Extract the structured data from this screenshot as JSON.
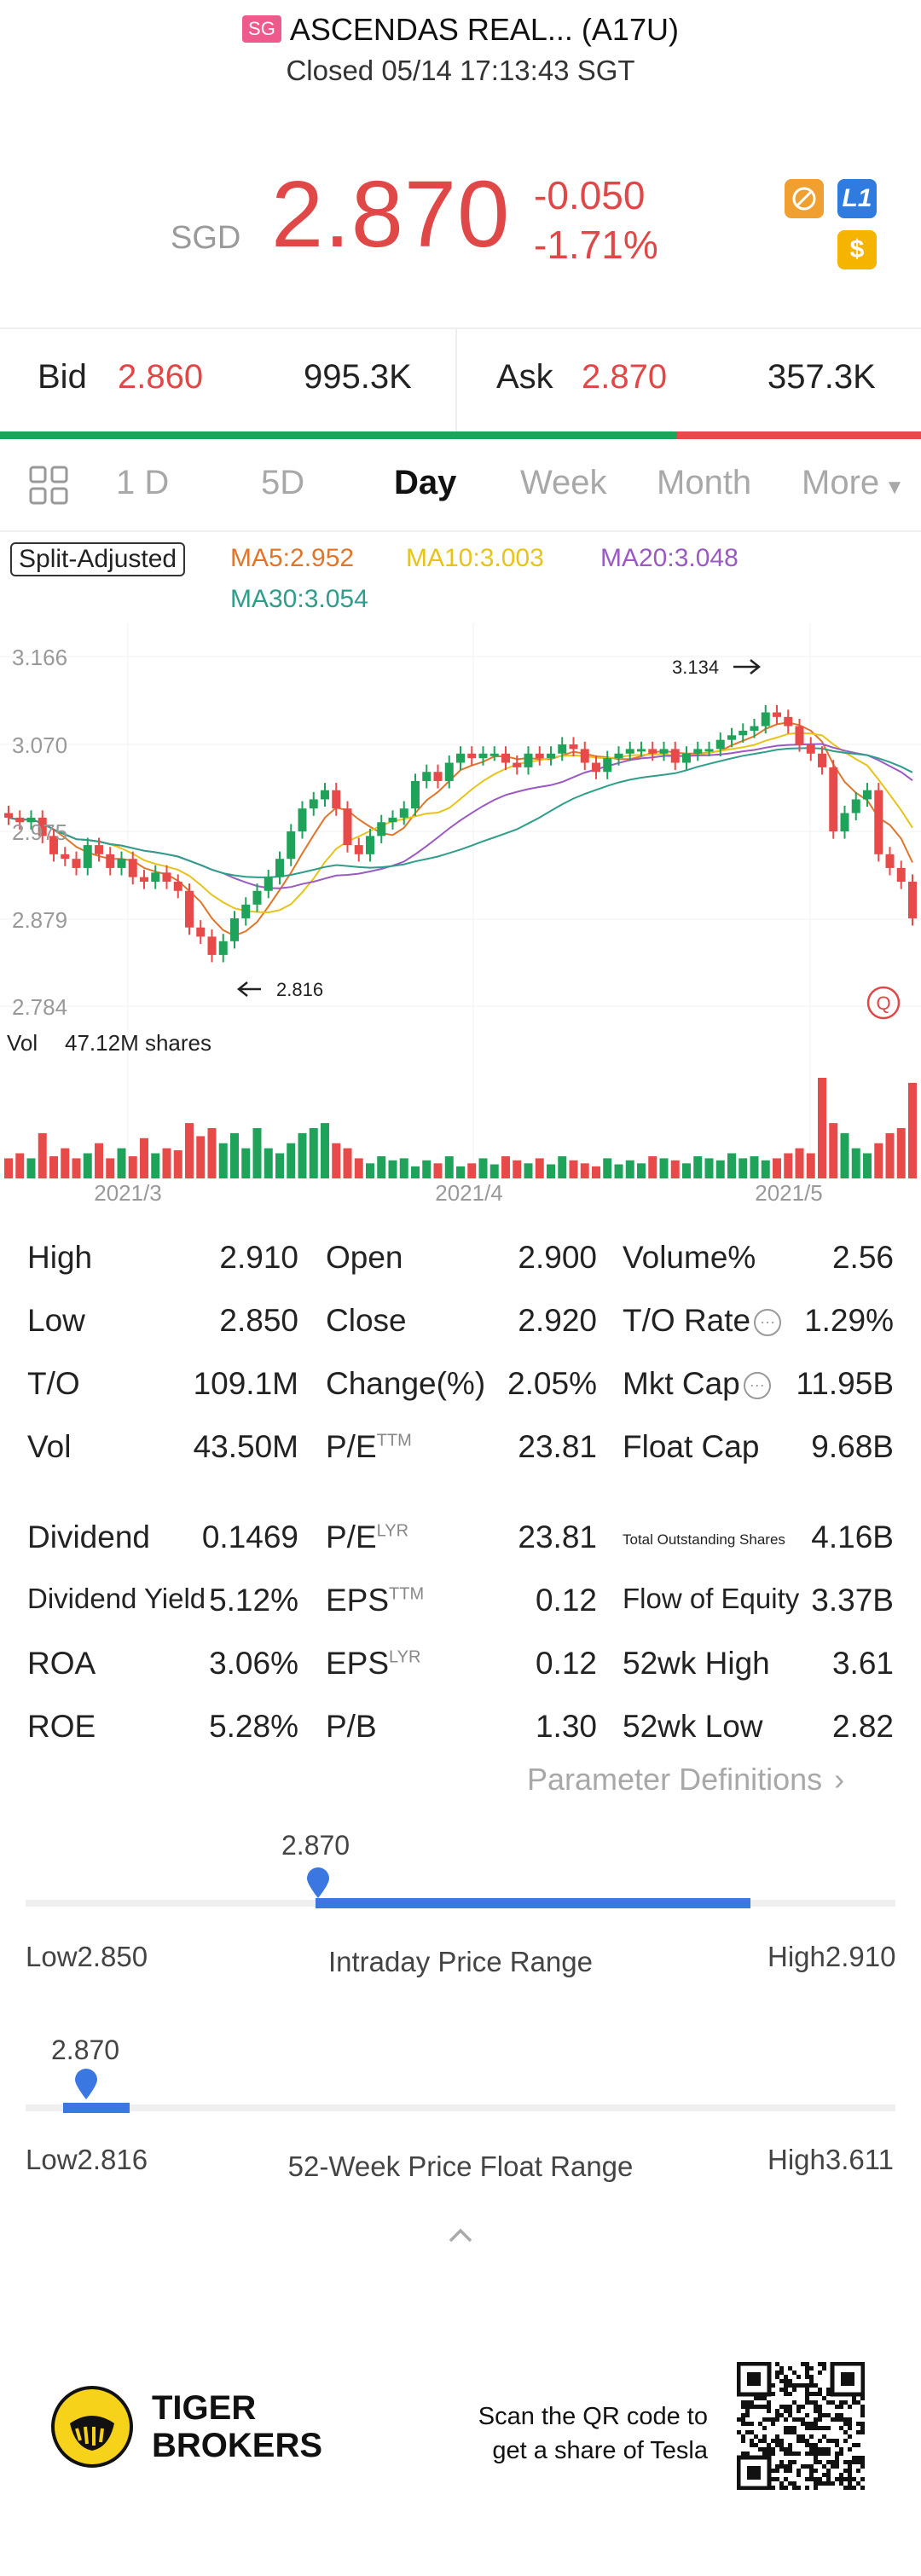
{
  "header": {
    "market_tag": "SG",
    "title": "ASCENDAS REAL... (A17U)",
    "status": "Closed 05/14 17:13:43 SGT"
  },
  "quote": {
    "currency": "SGD",
    "price": "2.870",
    "change": "-0.050",
    "change_pct": "-1.71%",
    "badges": [
      "shortable-icon",
      "level1-icon",
      "dollar-icon"
    ],
    "badge_l1": "L1",
    "badge_dollar": "$"
  },
  "bidask": {
    "bid_label": "Bid",
    "bid_price": "2.860",
    "bid_size": "995.3K",
    "ask_label": "Ask",
    "ask_price": "2.870",
    "ask_size": "357.3K",
    "bid_share": 0.735
  },
  "tabs": [
    "1 D",
    "5D",
    "Day",
    "Week",
    "Month",
    "More"
  ],
  "active_tab": "Day",
  "ma": {
    "split": "Split-Adjusted",
    "ma5": "MA5:2.952",
    "ma10": "MA10:3.003",
    "ma20": "MA20:3.048",
    "ma30": "MA30:3.054",
    "colors": {
      "ma5": "#e0762a",
      "ma10": "#e8c319",
      "ma20": "#9b59c4",
      "ma30": "#2e9e8a"
    }
  },
  "chart_data": {
    "type": "candlestick",
    "y_ticks": [
      "3.166",
      "3.070",
      "2.975",
      "2.879",
      "2.784"
    ],
    "ylim": [
      2.784,
      3.166
    ],
    "high_marker": "3.134",
    "low_marker": "2.816",
    "volume_label": "Vol",
    "volume_value": "47.12M shares",
    "x_ticks": [
      "2021/3",
      "2021/4",
      "2021/5"
    ],
    "up_color": "#1fa35a",
    "down_color": "#e84a4a"
  },
  "stats": {
    "col1": [
      {
        "label": "High",
        "value": "2.910"
      },
      {
        "label": "Low",
        "value": "2.850"
      },
      {
        "label": "T/O",
        "value": "109.1M"
      },
      {
        "label": "Vol",
        "value": "43.50M"
      },
      {
        "label": "Dividend",
        "value": "0.1469"
      },
      {
        "label": "Dividend Yield",
        "value": "5.12%"
      },
      {
        "label": "ROA",
        "value": "3.06%"
      },
      {
        "label": "ROE",
        "value": "5.28%"
      }
    ],
    "col2": [
      {
        "label": "Open",
        "value": "2.900"
      },
      {
        "label": "Close",
        "value": "2.920"
      },
      {
        "label": "Change(%)",
        "value": "2.05%"
      },
      {
        "label": "P/E",
        "sup": "TTM",
        "value": "23.81"
      },
      {
        "label": "P/E",
        "sup": "LYR",
        "value": "23.81"
      },
      {
        "label": "EPS",
        "sup": "TTM",
        "value": "0.12"
      },
      {
        "label": "EPS",
        "sup": "LYR",
        "value": "0.12"
      },
      {
        "label": "P/B",
        "value": "1.30"
      }
    ],
    "col3": [
      {
        "label": "Volume%",
        "value": "2.56"
      },
      {
        "label": "T/O Rate",
        "value": "1.29%"
      },
      {
        "label": "Mkt Cap",
        "value": "11.95B"
      },
      {
        "label": "Float Cap",
        "value": "9.68B"
      },
      {
        "label": "Total Outstanding Shares",
        "value": "4.16B"
      },
      {
        "label": "Flow of Equity",
        "value": "3.37B"
      },
      {
        "label": "52wk High",
        "value": "3.61"
      },
      {
        "label": "52wk Low",
        "value": "2.82"
      }
    ],
    "param_def": "Parameter Definitions"
  },
  "intraday": {
    "current": "2.870",
    "low": "Low2.850",
    "high": "High2.910",
    "caption": "Intraday Price Range",
    "position": 0.333
  },
  "week52": {
    "current": "2.870",
    "low": "Low2.816",
    "high": "High3.611",
    "caption": "52-Week Price Float Range",
    "position": 0.068
  },
  "footer": {
    "brand_line1": "TIGER",
    "brand_line2": "BROKERS",
    "scan_line1": "Scan the QR code to",
    "scan_line2": "get a share of Tesla"
  }
}
